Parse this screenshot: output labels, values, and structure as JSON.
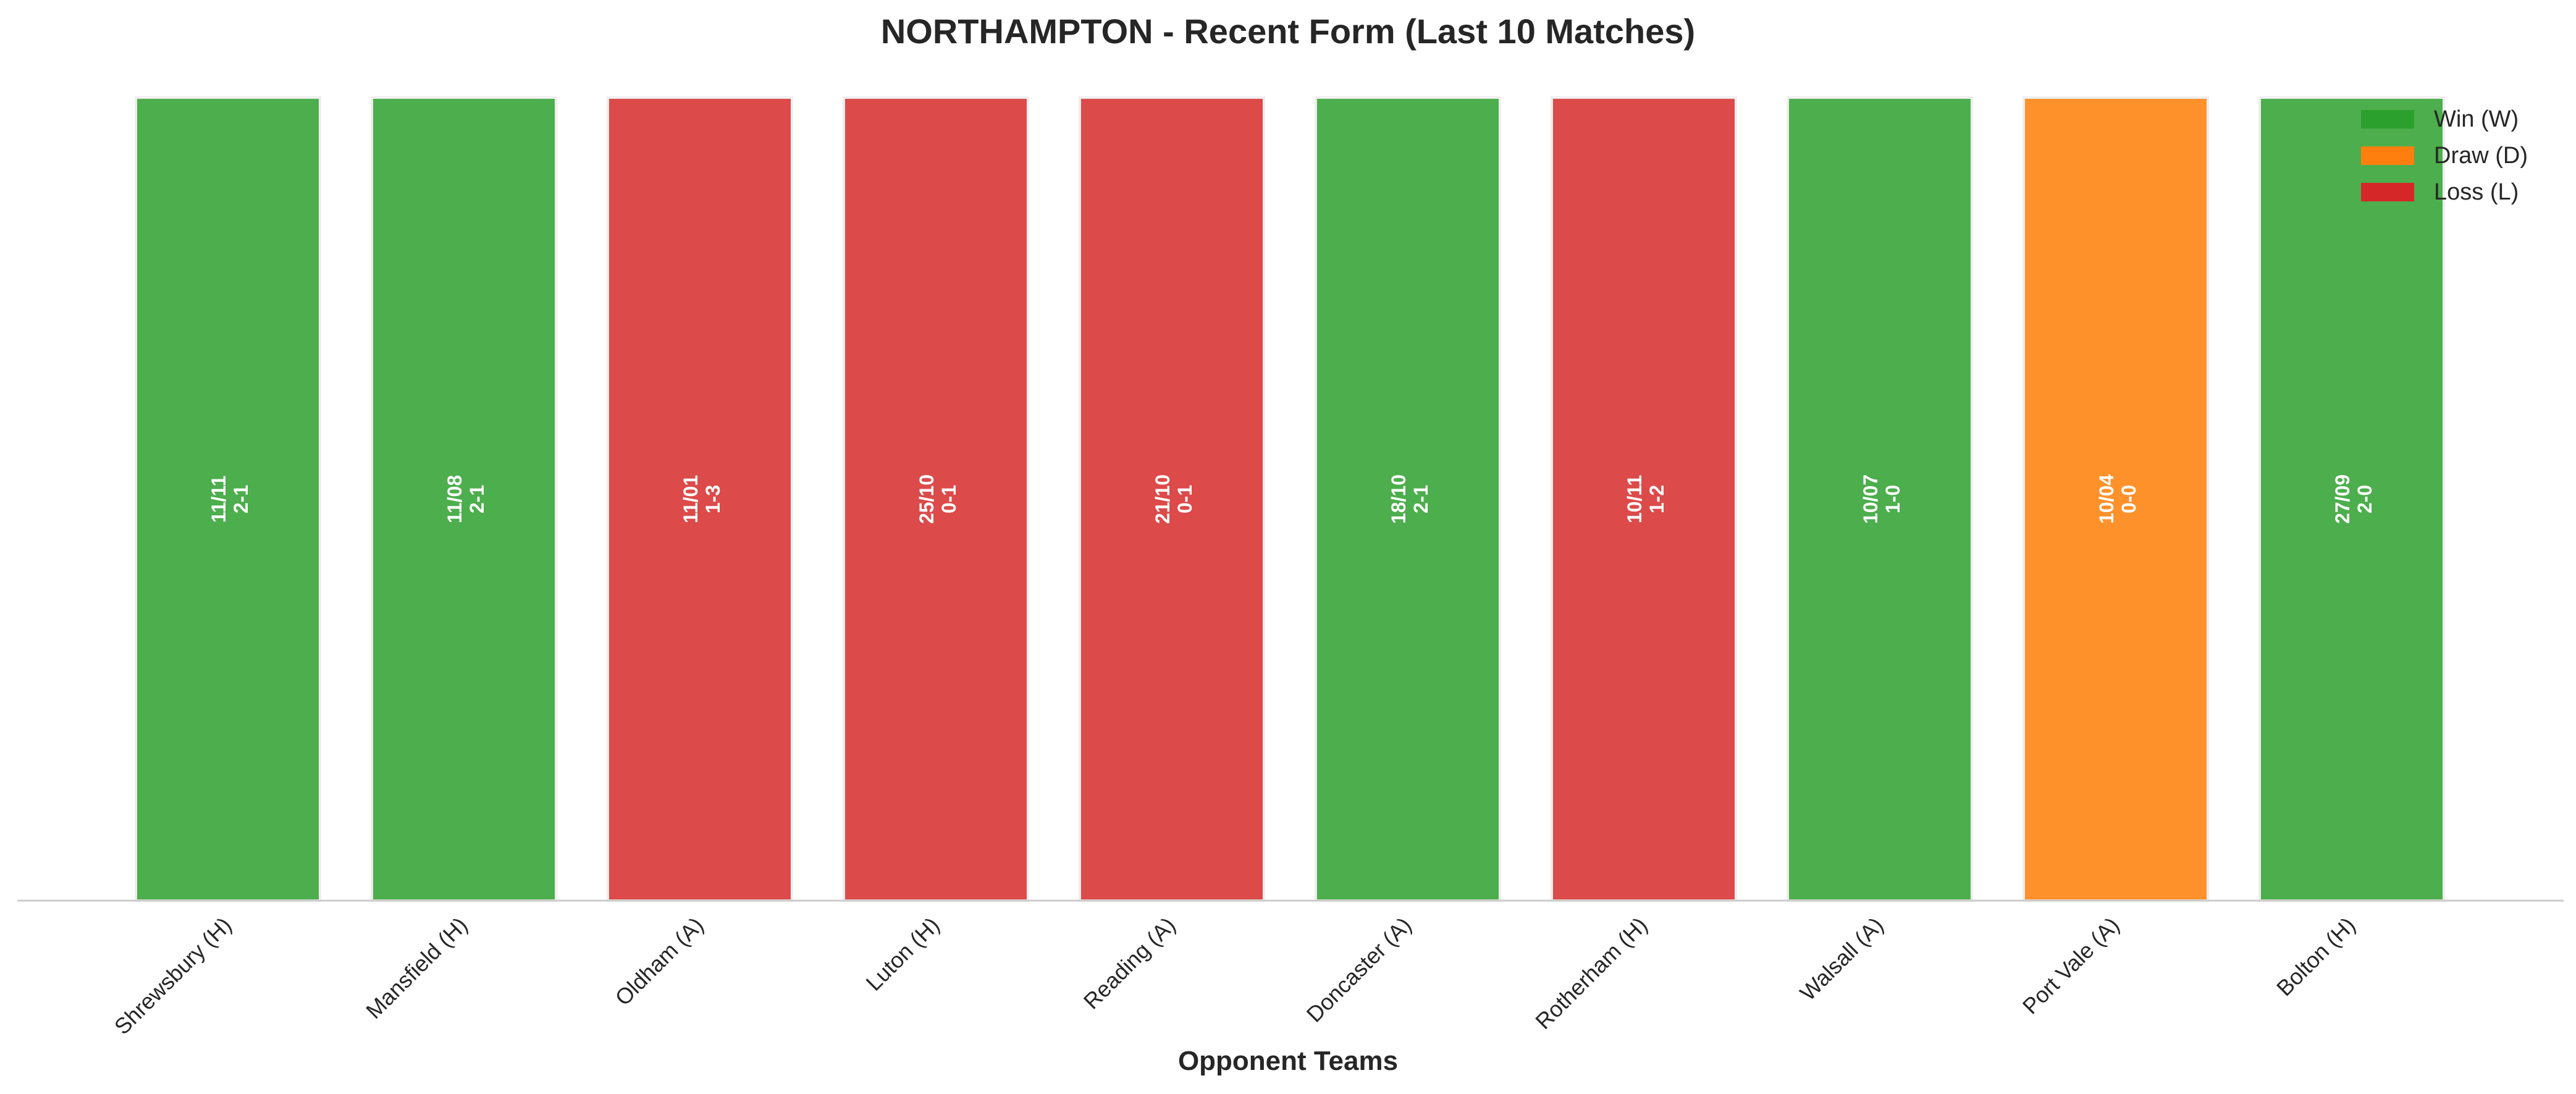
{
  "chart_data": {
    "type": "bar",
    "title": "NORTHAMPTON - Recent Form (Last 10 Matches)",
    "xlabel": "Opponent Teams",
    "ylabel": "",
    "grid": false,
    "legend_position": "top-right",
    "categories": [
      "Shrewsbury (H)",
      "Mansfield (H)",
      "Oldham (A)",
      "Luton (H)",
      "Reading (A)",
      "Doncaster (A)",
      "Rotherham (H)",
      "Walsall (A)",
      "Port Vale (A)",
      "Bolton (H)"
    ],
    "values": [
      1,
      1,
      1,
      1,
      1,
      1,
      1,
      1,
      1,
      1
    ],
    "ylim": [
      0,
      1
    ],
    "results": [
      "W",
      "W",
      "L",
      "L",
      "L",
      "W",
      "L",
      "W",
      "D",
      "W"
    ],
    "dates": [
      "11/11",
      "11/08",
      "11/01",
      "25/10",
      "21/10",
      "18/10",
      "10/11",
      "10/07",
      "10/04",
      "27/09"
    ],
    "scores": [
      "2-1",
      "2-1",
      "1-3",
      "0-1",
      "0-1",
      "2-1",
      "1-2",
      "1-0",
      "0-0",
      "2-0"
    ],
    "legend": [
      {
        "key": "W",
        "label": "Win (W)",
        "color": "#2ca02c"
      },
      {
        "key": "D",
        "label": "Draw (D)",
        "color": "#ff7f0e"
      },
      {
        "key": "L",
        "label": "Loss (L)",
        "color": "#d62728"
      }
    ],
    "bar_colors": {
      "W": "#4cae4c",
      "D": "#ff912b",
      "L": "#dc4a4a"
    }
  }
}
